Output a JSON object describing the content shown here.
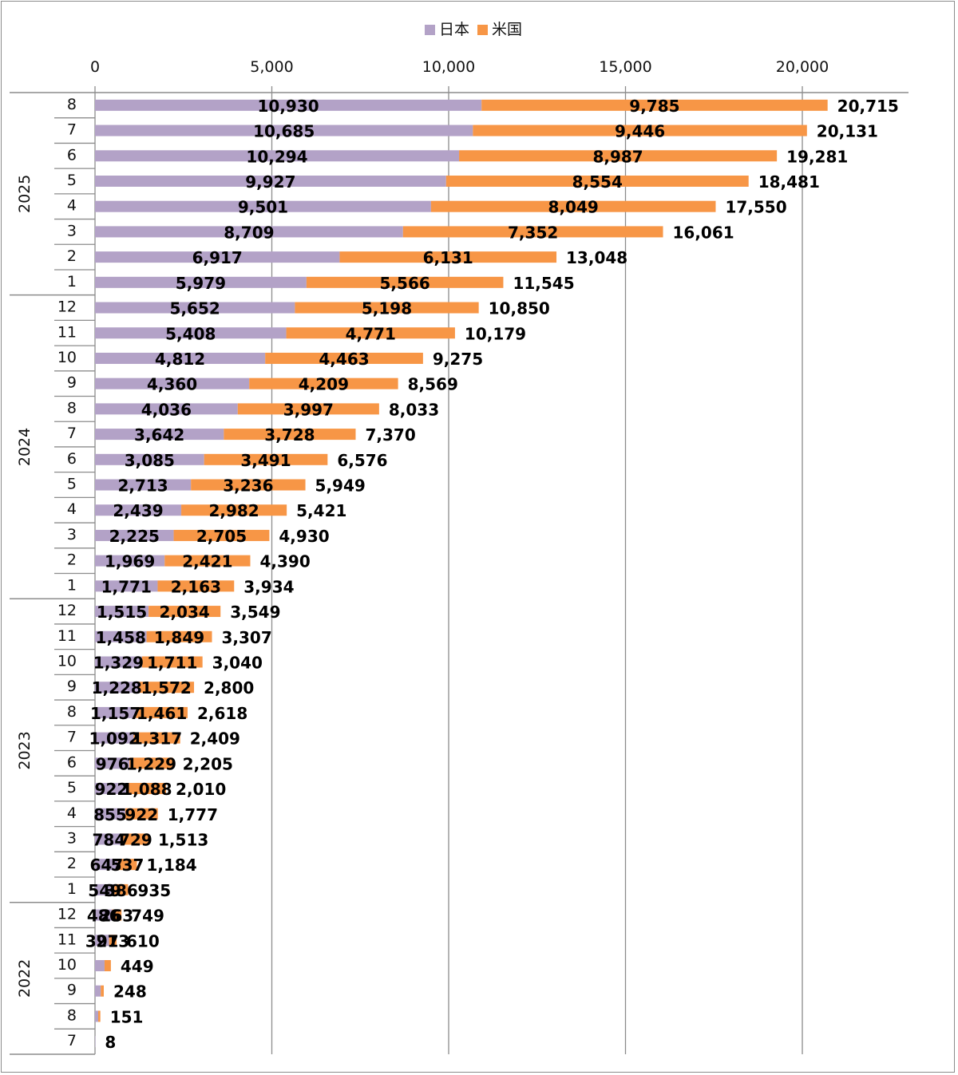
{
  "chart_data": {
    "type": "bar",
    "orientation": "horizontal",
    "stacked": true,
    "title": "",
    "xlabel": "",
    "ylabel": "",
    "xlim": [
      0,
      20000
    ],
    "x_ticks": [
      "0",
      "5,000",
      "10,000",
      "15,000",
      "20,000"
    ],
    "x_tick_values": [
      0,
      5000,
      10000,
      15000,
      20000
    ],
    "grid": true,
    "legend_position": "top-center",
    "colors": {
      "japan": "#b3a2c7",
      "us": "#f79646"
    },
    "legend": [
      "日本",
      "米国"
    ],
    "year_groups": [
      {
        "year": "2025",
        "months": [
          "8",
          "7",
          "6",
          "5",
          "4",
          "3",
          "2",
          "1"
        ]
      },
      {
        "year": "2024",
        "months": [
          "12",
          "11",
          "10",
          "9",
          "8",
          "7",
          "6",
          "5",
          "4",
          "3",
          "2",
          "1"
        ]
      },
      {
        "year": "2023",
        "months": [
          "12",
          "11",
          "10",
          "9",
          "8",
          "7",
          "6",
          "5",
          "4",
          "3",
          "2",
          "1"
        ]
      },
      {
        "year": "2022",
        "months": [
          "12",
          "11",
          "10",
          "9",
          "8",
          "7"
        ]
      }
    ],
    "categories": [
      "2025-8",
      "2025-7",
      "2025-6",
      "2025-5",
      "2025-4",
      "2025-3",
      "2025-2",
      "2025-1",
      "2024-12",
      "2024-11",
      "2024-10",
      "2024-9",
      "2024-8",
      "2024-7",
      "2024-6",
      "2024-5",
      "2024-4",
      "2024-3",
      "2024-2",
      "2024-1",
      "2023-12",
      "2023-11",
      "2023-10",
      "2023-9",
      "2023-8",
      "2023-7",
      "2023-6",
      "2023-5",
      "2023-4",
      "2023-3",
      "2023-2",
      "2023-1",
      "2022-12",
      "2022-11",
      "2022-10",
      "2022-9",
      "2022-8",
      "2022-7"
    ],
    "series": [
      {
        "name": "日本",
        "values": [
          10930,
          10685,
          10294,
          9927,
          9501,
          8709,
          6917,
          5979,
          5652,
          5408,
          4812,
          4360,
          4036,
          3642,
          3085,
          2713,
          2439,
          2225,
          1969,
          1771,
          1515,
          1458,
          1329,
          1228,
          1157,
          1092,
          976,
          922,
          855,
          784,
          647,
          549,
          486,
          397,
          270,
          163,
          91,
          8
        ],
        "labels_shown": [
          true,
          true,
          true,
          true,
          true,
          true,
          true,
          true,
          true,
          true,
          true,
          true,
          true,
          true,
          true,
          true,
          true,
          true,
          true,
          true,
          true,
          true,
          true,
          true,
          true,
          true,
          true,
          true,
          true,
          true,
          true,
          true,
          true,
          true,
          false,
          false,
          false,
          false
        ]
      },
      {
        "name": "米国",
        "values": [
          9785,
          9446,
          8987,
          8554,
          8049,
          7352,
          6131,
          5566,
          5198,
          4771,
          4463,
          4209,
          3997,
          3728,
          3491,
          3236,
          2982,
          2705,
          2421,
          2163,
          2034,
          1849,
          1711,
          1572,
          1461,
          1317,
          1229,
          1088,
          922,
          729,
          537,
          386,
          263,
          213,
          179,
          85,
          60,
          0
        ],
        "labels_shown": [
          true,
          true,
          true,
          true,
          true,
          true,
          true,
          true,
          true,
          true,
          true,
          true,
          true,
          true,
          true,
          true,
          true,
          true,
          true,
          true,
          true,
          true,
          true,
          true,
          true,
          true,
          true,
          true,
          true,
          true,
          true,
          true,
          true,
          true,
          false,
          false,
          false,
          false
        ]
      }
    ],
    "totals": [
      20715,
      20131,
      19281,
      18481,
      17550,
      16061,
      13048,
      11545,
      10850,
      10179,
      9275,
      8569,
      8033,
      7370,
      6576,
      5949,
      5421,
      4930,
      4390,
      3934,
      3549,
      3307,
      3040,
      2800,
      2618,
      2409,
      2205,
      2010,
      1777,
      1513,
      1184,
      935,
      749,
      610,
      449,
      248,
      151,
      8
    ]
  }
}
